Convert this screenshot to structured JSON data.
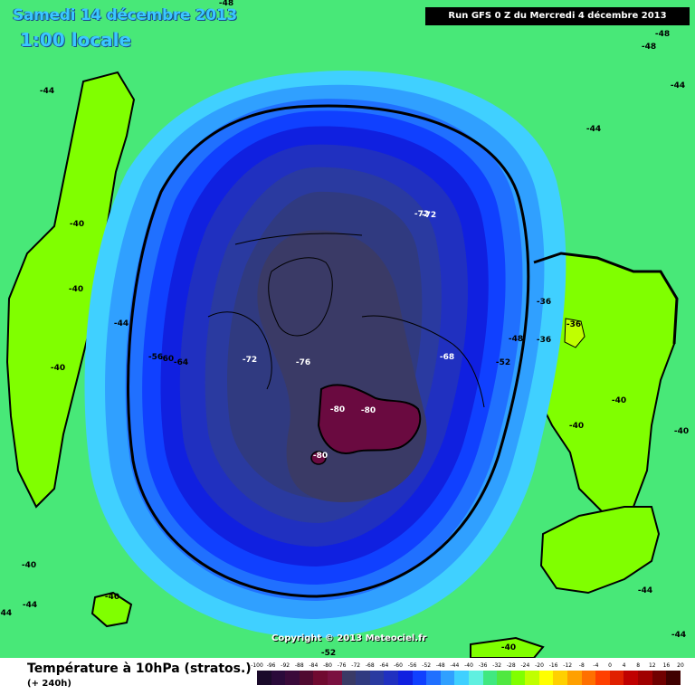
{
  "header": {
    "date_title": "Samedi 14 décembre 2013",
    "time_title": "1:00 locale",
    "run_info": "Run GFS 0 Z du Mercredi 4 décembre 2013"
  },
  "copyright": "Copyright © 2013 Meteociel.fr",
  "footer": {
    "caption": "Température à 10hPa (stratos.)",
    "subcaption": "(+ 240h)"
  },
  "legend": {
    "ticks": [
      "-100",
      "-96",
      "-92",
      "-88",
      "-84",
      "-80",
      "-76",
      "-72",
      "-68",
      "-64",
      "-60",
      "-56",
      "-52",
      "-48",
      "-44",
      "-40",
      "-36",
      "-32",
      "-28",
      "-24",
      "-20",
      "-16",
      "-12",
      "-8",
      "-4",
      "0",
      "4",
      "8",
      "12",
      "16",
      "20"
    ],
    "colors": [
      "#1a0a2a",
      "#2a0a3a",
      "#3a0a3a",
      "#500a30",
      "#700a30",
      "#7a1040",
      "#3a3a66",
      "#303a80",
      "#2a3aa0",
      "#2030c0",
      "#1020e0",
      "#1040ff",
      "#2070ff",
      "#30a0ff",
      "#40d0ff",
      "#60f0e0",
      "#40e880",
      "#50e840",
      "#80ff00",
      "#c0ff00",
      "#ffff00",
      "#ffd000",
      "#ffa000",
      "#ff7000",
      "#ff4000",
      "#e02000",
      "#c00000",
      "#a00000",
      "#700000",
      "#400000"
    ],
    "ocean_color": "#48e878",
    "land_color": "#80ff00",
    "vortex_core_color": "#3a3a66",
    "extreme_color": "#6a0a40"
  },
  "contour_labels": [
    {
      "text": "-48",
      "light": false
    },
    {
      "text": "-48",
      "light": false
    },
    {
      "text": "-48",
      "light": false
    },
    {
      "text": "-44",
      "light": false
    },
    {
      "text": "-44",
      "light": false
    },
    {
      "text": "-44",
      "light": false
    },
    {
      "text": "-40",
      "light": false
    },
    {
      "text": "-40",
      "light": false
    },
    {
      "text": "-40",
      "light": false
    },
    {
      "text": "-44",
      "light": false
    },
    {
      "text": "-56",
      "light": false
    },
    {
      "text": "-60",
      "light": false
    },
    {
      "text": "-64",
      "light": false
    },
    {
      "text": "-72",
      "light": true
    },
    {
      "text": "-76",
      "light": true
    },
    {
      "text": "-72",
      "light": true
    },
    {
      "text": "-72",
      "light": true
    },
    {
      "text": "-68",
      "light": true
    },
    {
      "text": "-52",
      "light": false
    },
    {
      "text": "-48",
      "light": false
    },
    {
      "text": "-36",
      "light": false
    },
    {
      "text": "-36",
      "light": false
    },
    {
      "text": "-36",
      "light": false
    },
    {
      "text": "-40",
      "light": false
    },
    {
      "text": "-40",
      "light": false
    },
    {
      "text": "-40",
      "light": false
    },
    {
      "text": "-80",
      "light": true
    },
    {
      "text": "-80",
      "light": true
    },
    {
      "text": "-80",
      "light": true
    },
    {
      "text": "-40",
      "light": false
    },
    {
      "text": "-44",
      "light": false
    },
    {
      "text": "-40",
      "light": false
    },
    {
      "text": "-44",
      "light": false
    },
    {
      "text": "-44",
      "light": false
    },
    {
      "text": "-52",
      "light": false
    },
    {
      "text": "-40",
      "light": false
    },
    {
      "text": "-44",
      "light": false
    }
  ]
}
